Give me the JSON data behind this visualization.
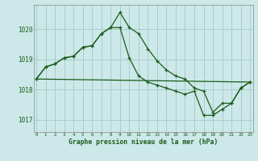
{
  "xlabel": "Graphe pression niveau de la mer (hPa)",
  "bg_color": "#cce8e8",
  "grid_color": "#aacccc",
  "line_color": "#1a5c1a",
  "ylim": [
    1016.6,
    1020.8
  ],
  "xlim": [
    -0.3,
    23.3
  ],
  "yticks": [
    1017,
    1018,
    1019,
    1020
  ],
  "xticks": [
    0,
    1,
    2,
    3,
    4,
    5,
    6,
    7,
    8,
    9,
    10,
    11,
    12,
    13,
    14,
    15,
    16,
    17,
    18,
    19,
    20,
    21,
    22,
    23
  ],
  "line1_x": [
    0,
    1,
    2,
    3,
    4,
    5,
    6,
    7,
    8,
    9,
    10,
    11,
    12,
    13,
    14,
    15,
    16,
    17,
    18,
    19,
    20,
    21,
    22,
    23
  ],
  "line1_y": [
    1018.35,
    1018.75,
    1018.85,
    1019.05,
    1019.1,
    1019.4,
    1019.45,
    1019.85,
    1020.05,
    1020.55,
    1020.05,
    1019.85,
    1019.35,
    1018.95,
    1018.65,
    1018.45,
    1018.35,
    1018.05,
    1017.95,
    1017.25,
    1017.55,
    1017.55,
    1018.05,
    1018.25
  ],
  "line2_x": [
    0,
    1,
    2,
    3,
    4,
    5,
    6,
    7,
    8,
    9,
    10,
    11,
    12,
    13,
    14,
    15,
    16,
    17,
    18,
    19,
    20,
    21,
    22,
    23
  ],
  "line2_y": [
    1018.35,
    1018.75,
    1018.85,
    1019.05,
    1019.1,
    1019.4,
    1019.45,
    1019.85,
    1020.05,
    1020.05,
    1019.05,
    1018.45,
    1018.25,
    1018.15,
    1018.05,
    1017.95,
    1017.85,
    1017.95,
    1017.15,
    1017.15,
    1017.35,
    1017.55,
    1018.05,
    1018.25
  ],
  "line3_x": [
    0,
    23
  ],
  "line3_y": [
    1018.35,
    1018.25
  ]
}
